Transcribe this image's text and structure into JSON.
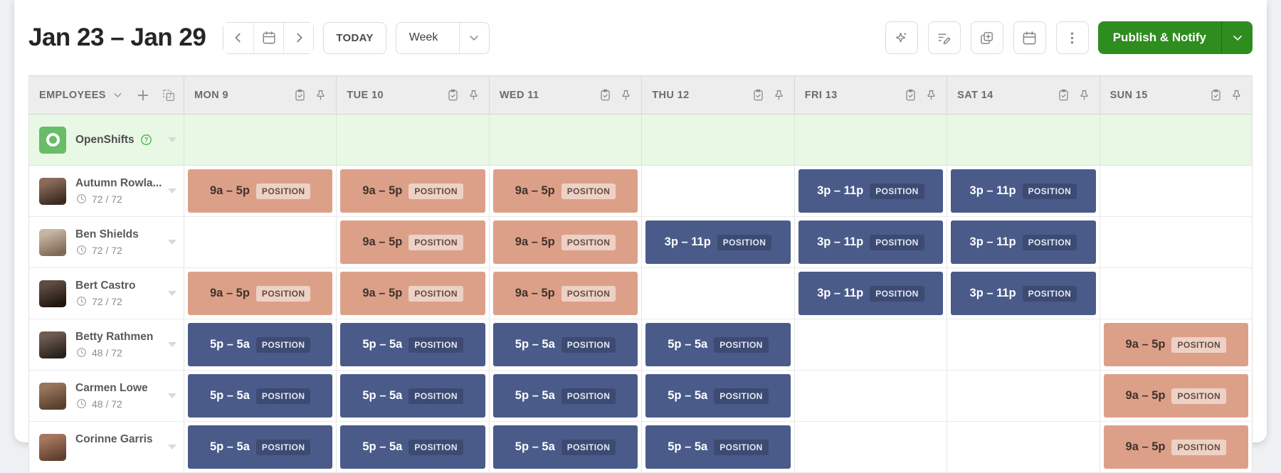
{
  "toolbar": {
    "date_range": "Jan 23 – Jan 29",
    "today_label": "TODAY",
    "view_selector": {
      "value": "Week",
      "chevron_icon": "chevron-down-icon"
    },
    "nav_icons": [
      "chevron-left-icon",
      "calendar-icon",
      "chevron-right-icon"
    ],
    "action_icons": [
      "auto-schedule-sparkle-icon",
      "edit-shifts-icon",
      "copy-schedule-icon",
      "calendar-icon",
      "more-options-kebab-icon"
    ],
    "publish": {
      "label": "Publish & Notify",
      "chevron_icon": "chevron-down-icon"
    }
  },
  "schedule": {
    "employees_header": "EMPLOYEES",
    "header_icons": [
      "chevron-down-icon",
      "add-employee-plus-icon",
      "copy-week-icon"
    ],
    "day_header_icons": [
      "clipboard-check-icon",
      "pin-icon"
    ],
    "position_label": "POSITION",
    "days": [
      "MON 9",
      "TUE 10",
      "WED 11",
      "THU 12",
      "FRI 13",
      "SAT 14",
      "SUN 15"
    ],
    "open_shifts_label": "OpenShifts",
    "rows": [
      {
        "name": "Autumn Rowla...",
        "hours": "72 / 72",
        "avatar": [
          "#8a6b59",
          "#3a2b22"
        ],
        "shifts": [
          {
            "time": "9a – 5p",
            "kind": "day"
          },
          {
            "time": "9a – 5p",
            "kind": "day"
          },
          {
            "time": "9a – 5p",
            "kind": "day"
          },
          null,
          {
            "time": "3p – 11p",
            "kind": "evening"
          },
          {
            "time": "3p – 11p",
            "kind": "evening"
          },
          null
        ]
      },
      {
        "name": "Ben Shields",
        "hours": "72 / 72",
        "avatar": [
          "#c6b5a2",
          "#7e6a55"
        ],
        "shifts": [
          null,
          {
            "time": "9a – 5p",
            "kind": "day"
          },
          {
            "time": "9a – 5p",
            "kind": "day"
          },
          {
            "time": "3p – 11p",
            "kind": "evening"
          },
          {
            "time": "3p – 11p",
            "kind": "evening"
          },
          {
            "time": "3p – 11p",
            "kind": "evening"
          },
          null
        ]
      },
      {
        "name": "Bert Castro",
        "hours": "72 / 72",
        "avatar": [
          "#5f4c41",
          "#20160f"
        ],
        "shifts": [
          {
            "time": "9a – 5p",
            "kind": "day"
          },
          {
            "time": "9a – 5p",
            "kind": "day"
          },
          {
            "time": "9a – 5p",
            "kind": "day"
          },
          null,
          {
            "time": "3p – 11p",
            "kind": "evening"
          },
          {
            "time": "3p – 11p",
            "kind": "evening"
          },
          null
        ]
      },
      {
        "name": "Betty Rathmen",
        "hours": "48 / 72",
        "avatar": [
          "#6e5c52",
          "#2a211c"
        ],
        "shifts": [
          {
            "time": "5p – 5a",
            "kind": "night"
          },
          {
            "time": "5p – 5a",
            "kind": "night"
          },
          {
            "time": "5p – 5a",
            "kind": "night"
          },
          {
            "time": "5p – 5a",
            "kind": "night"
          },
          null,
          null,
          {
            "time": "9a – 5p",
            "kind": "day"
          }
        ]
      },
      {
        "name": "Carmen Lowe",
        "hours": "48 / 72",
        "avatar": [
          "#97755c",
          "#58402d"
        ],
        "shifts": [
          {
            "time": "5p – 5a",
            "kind": "night"
          },
          {
            "time": "5p – 5a",
            "kind": "night"
          },
          {
            "time": "5p – 5a",
            "kind": "night"
          },
          {
            "time": "5p – 5a",
            "kind": "night"
          },
          null,
          null,
          {
            "time": "9a – 5p",
            "kind": "day"
          }
        ]
      },
      {
        "name": "Corinne Garris",
        "hours": "",
        "avatar": [
          "#a57760",
          "#61402e"
        ],
        "shifts": [
          {
            "time": "5p – 5a",
            "kind": "night"
          },
          {
            "time": "5p – 5a",
            "kind": "night"
          },
          {
            "time": "5p – 5a",
            "kind": "night"
          },
          {
            "time": "5p – 5a",
            "kind": "night"
          },
          null,
          null,
          {
            "time": "9a – 5p",
            "kind": "day"
          }
        ]
      }
    ]
  },
  "colors": {
    "page_bg": "#eef0f3",
    "publish_green": "#2f8c1f",
    "open_shifts_green": "#69bd68",
    "open_shifts_row_bg": "#e9f8e5",
    "day_shift_bg": "#dca089",
    "evening_shift_bg": "#4a5b8a",
    "evening_shift_pill": "#3d4b73"
  }
}
